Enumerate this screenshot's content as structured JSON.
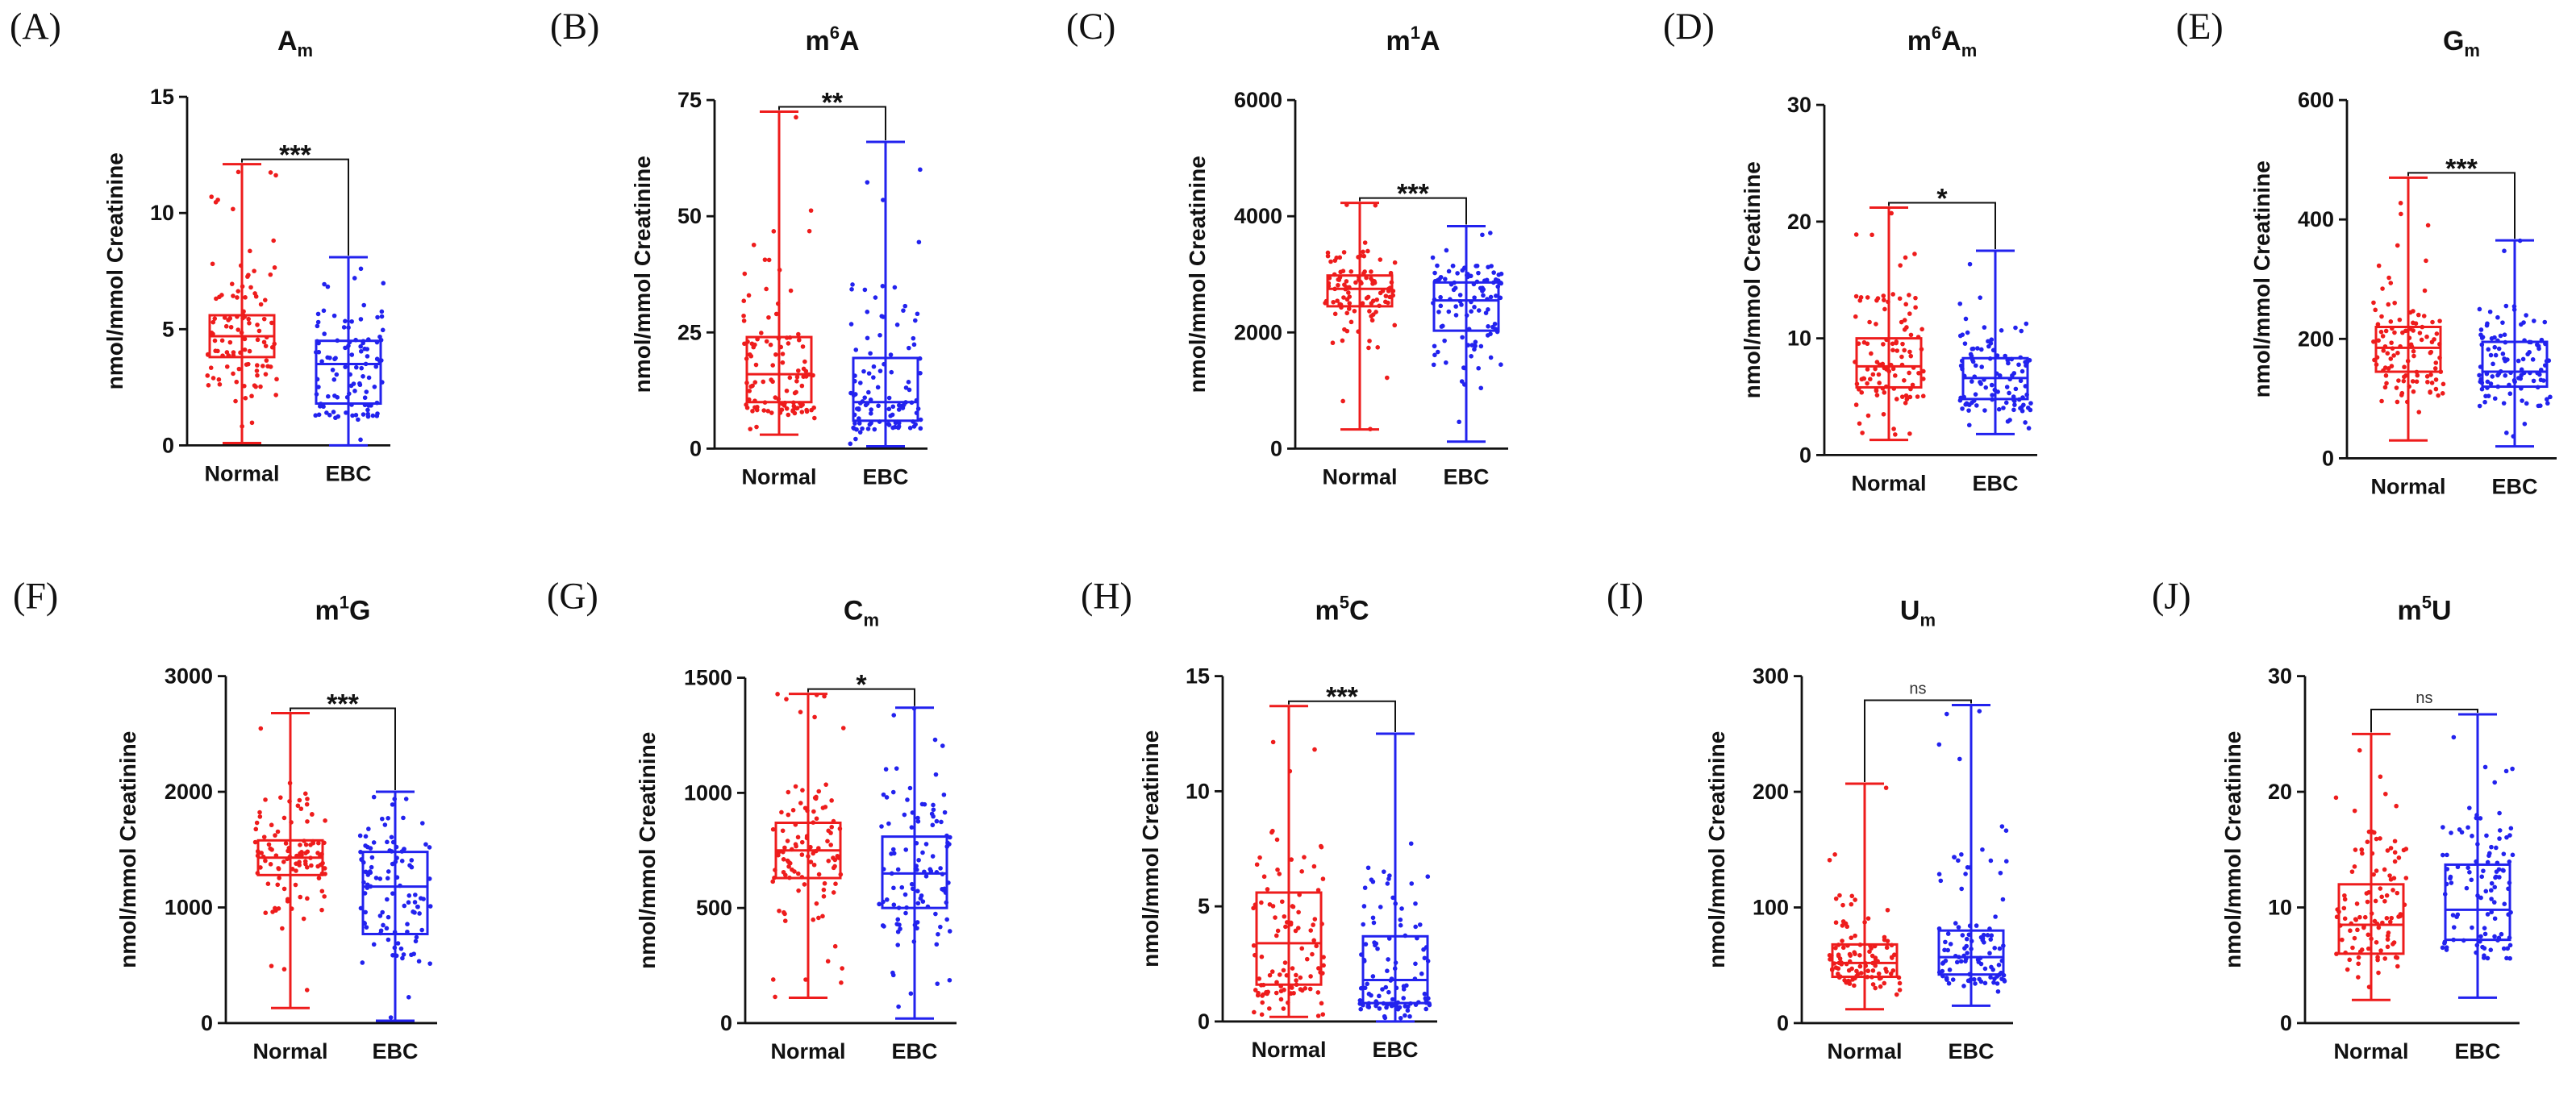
{
  "figure": {
    "xlabels": [
      "Normal",
      "EBC"
    ],
    "ylabel": "nmol/mmol Creatinine",
    "colors": {
      "Normal": "#ee1c1c",
      "EBC": "#2222ee",
      "axis": "#111111"
    }
  },
  "chart_data": [
    {
      "type": "box",
      "letter": "(A)",
      "title": "A",
      "title_sub": "m",
      "title_sup": "",
      "ylabel": "nmol/mmol Creatinine",
      "categories": [
        "Normal",
        "EBC"
      ],
      "ylim": [
        0,
        15
      ],
      "yticks": [
        0,
        5,
        10,
        15
      ],
      "yticklabels": [
        "0",
        "5",
        "10",
        "15"
      ],
      "significance": "***",
      "series": [
        {
          "name": "Normal",
          "min": 0.1,
          "q1": 3.8,
          "median": 4.7,
          "q3": 5.6,
          "max": 12.1
        },
        {
          "name": "EBC",
          "min": 0.0,
          "q1": 1.8,
          "median": 3.5,
          "q3": 4.5,
          "max": 8.1
        }
      ]
    },
    {
      "type": "box",
      "letter": "(B)",
      "title": "m",
      "title_sub": "",
      "title_sup": "6",
      "title_after": "A",
      "ylabel": "nmol/mmol Creatinine",
      "categories": [
        "Normal",
        "EBC"
      ],
      "ylim": [
        0,
        75
      ],
      "yticks": [
        0,
        25,
        50,
        75
      ],
      "yticklabels": [
        "0",
        "25",
        "50",
        "75"
      ],
      "significance": "**",
      "series": [
        {
          "name": "Normal",
          "min": 3,
          "q1": 10,
          "median": 16,
          "q3": 24,
          "max": 72.5
        },
        {
          "name": "EBC",
          "min": 0.5,
          "q1": 6,
          "median": 10,
          "q3": 19.5,
          "max": 66
        }
      ]
    },
    {
      "type": "box",
      "letter": "(C)",
      "title": "m",
      "title_sub": "",
      "title_sup": "1",
      "title_after": "A",
      "ylabel": "nmol/mmol Creatinine",
      "categories": [
        "Normal",
        "EBC"
      ],
      "ylim": [
        0,
        6000
      ],
      "yticks": [
        0,
        2000,
        4000,
        6000
      ],
      "yticklabels": [
        "0",
        "2000",
        "4000",
        "6000"
      ],
      "significance": "***",
      "series": [
        {
          "name": "Normal",
          "min": 330,
          "q1": 2450,
          "median": 2750,
          "q3": 2980,
          "max": 4230
        },
        {
          "name": "EBC",
          "min": 120,
          "q1": 2030,
          "median": 2550,
          "q3": 2860,
          "max": 3830
        }
      ]
    },
    {
      "type": "box",
      "letter": "(D)",
      "title": "m",
      "title_sub": "m",
      "title_sup": "6",
      "title_after": "A",
      "ylabel": "nmol/mmol Creatinine",
      "categories": [
        "Normal",
        "EBC"
      ],
      "ylim": [
        0,
        30
      ],
      "yticks": [
        0,
        10,
        20,
        30
      ],
      "yticklabels": [
        "0",
        "10",
        "20",
        "30"
      ],
      "significance": "*",
      "series": [
        {
          "name": "Normal",
          "min": 1.3,
          "q1": 5.8,
          "median": 7.6,
          "q3": 10.0,
          "max": 21.2
        },
        {
          "name": "EBC",
          "min": 1.8,
          "q1": 4.8,
          "median": 6.6,
          "q3": 8.3,
          "max": 17.5
        }
      ]
    },
    {
      "type": "box",
      "letter": "(E)",
      "title": "G",
      "title_sub": "m",
      "title_sup": "",
      "ylabel": "nmol/mmol Creatinine",
      "categories": [
        "Normal",
        "EBC"
      ],
      "ylim": [
        0,
        600
      ],
      "yticks": [
        0,
        200,
        400,
        600
      ],
      "yticklabels": [
        "0",
        "200",
        "400",
        "600"
      ],
      "significance": "***",
      "series": [
        {
          "name": "Normal",
          "min": 30,
          "q1": 145,
          "median": 185,
          "q3": 220,
          "max": 470
        },
        {
          "name": "EBC",
          "min": 20,
          "q1": 120,
          "median": 145,
          "q3": 195,
          "max": 365
        }
      ]
    },
    {
      "type": "box",
      "letter": "(F)",
      "title": "m",
      "title_sub": "",
      "title_sup": "1",
      "title_after": "G",
      "ylabel": "nmol/mmol Creatinine",
      "categories": [
        "Normal",
        "EBC"
      ],
      "ylim": [
        0,
        3000
      ],
      "yticks": [
        0,
        1000,
        2000,
        3000
      ],
      "yticklabels": [
        "0",
        "1000",
        "2000",
        "3000"
      ],
      "significance": "***",
      "series": [
        {
          "name": "Normal",
          "min": 130,
          "q1": 1280,
          "median": 1430,
          "q3": 1580,
          "max": 2680
        },
        {
          "name": "EBC",
          "min": 20,
          "q1": 770,
          "median": 1180,
          "q3": 1480,
          "max": 2000
        }
      ]
    },
    {
      "type": "box",
      "letter": "(G)",
      "title": "C",
      "title_sub": "m",
      "title_sup": "",
      "ylabel": "nmol/mmol Creatinine",
      "categories": [
        "Normal",
        "EBC"
      ],
      "ylim": [
        0,
        1500
      ],
      "yticks": [
        0,
        500,
        1000,
        1500
      ],
      "yticklabels": [
        "0",
        "500",
        "1000",
        "1500"
      ],
      "significance": "*",
      "series": [
        {
          "name": "Normal",
          "min": 110,
          "q1": 630,
          "median": 750,
          "q3": 870,
          "max": 1430
        },
        {
          "name": "EBC",
          "min": 20,
          "q1": 500,
          "median": 650,
          "q3": 810,
          "max": 1370
        }
      ]
    },
    {
      "type": "box",
      "letter": "(H)",
      "title": "m",
      "title_sub": "",
      "title_sup": "5",
      "title_after": "C",
      "ylabel": "nmol/mmol Creatinine",
      "categories": [
        "Normal",
        "EBC"
      ],
      "ylim": [
        0,
        15
      ],
      "yticks": [
        0,
        5,
        10,
        15
      ],
      "yticklabels": [
        "0",
        "5",
        "10",
        "15"
      ],
      "significance": "***",
      "series": [
        {
          "name": "Normal",
          "min": 0.2,
          "q1": 1.6,
          "median": 3.4,
          "q3": 5.6,
          "max": 13.7
        },
        {
          "name": "EBC",
          "min": 0.0,
          "q1": 0.8,
          "median": 1.8,
          "q3": 3.7,
          "max": 12.5
        }
      ]
    },
    {
      "type": "box",
      "letter": "(I)",
      "title": "U",
      "title_sub": "m",
      "title_sup": "",
      "ylabel": "nmol/mmol Creatinine",
      "categories": [
        "Normal",
        "EBC"
      ],
      "ylim": [
        0,
        300
      ],
      "yticks": [
        0,
        100,
        200,
        300
      ],
      "yticklabels": [
        "0",
        "100",
        "200",
        "300"
      ],
      "significance": "ns",
      "series": [
        {
          "name": "Normal",
          "min": 12,
          "q1": 40,
          "median": 52,
          "q3": 68,
          "max": 207
        },
        {
          "name": "EBC",
          "min": 15,
          "q1": 42,
          "median": 57,
          "q3": 80,
          "max": 275
        }
      ]
    },
    {
      "type": "box",
      "letter": "(J)",
      "title": "m",
      "title_sub": "",
      "title_sup": "5",
      "title_after": "U",
      "ylabel": "nmol/mmol Creatinine",
      "categories": [
        "Normal",
        "EBC"
      ],
      "ylim": [
        0,
        30
      ],
      "yticks": [
        0,
        10,
        20,
        30
      ],
      "yticklabels": [
        "0",
        "10",
        "20",
        "30"
      ],
      "significance": "ns",
      "series": [
        {
          "name": "Normal",
          "min": 2.0,
          "q1": 6.0,
          "median": 8.5,
          "q3": 12.0,
          "max": 25.0
        },
        {
          "name": "EBC",
          "min": 2.2,
          "q1": 7.2,
          "median": 9.8,
          "q3": 13.7,
          "max": 26.7
        }
      ]
    }
  ]
}
